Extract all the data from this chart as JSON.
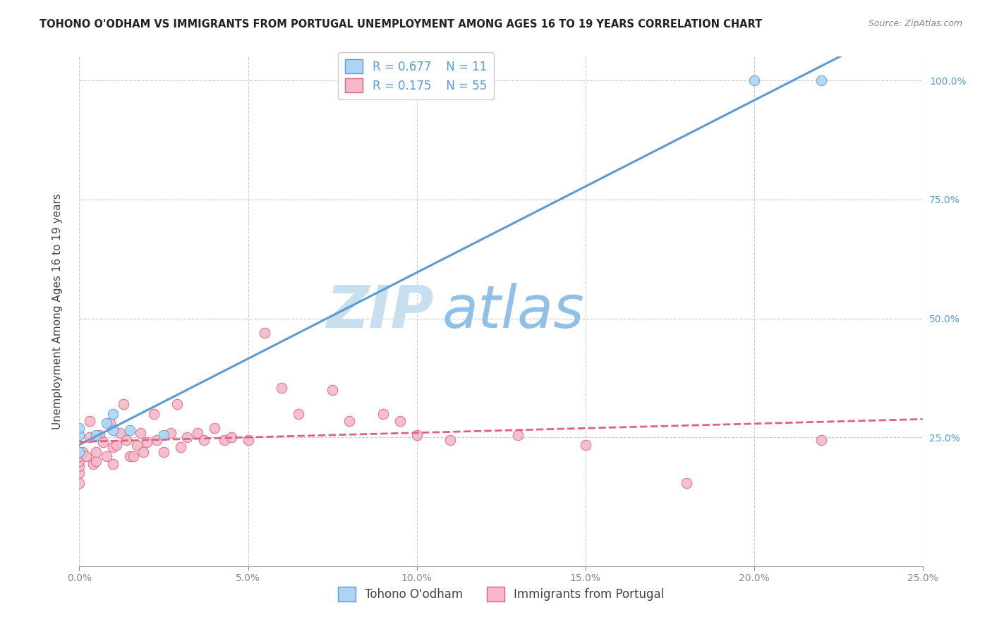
{
  "title": "TOHONO O'ODHAM VS IMMIGRANTS FROM PORTUGAL UNEMPLOYMENT AMONG AGES 16 TO 19 YEARS CORRELATION CHART",
  "source": "Source: ZipAtlas.com",
  "ylabel": "Unemployment Among Ages 16 to 19 years",
  "xlim": [
    0.0,
    0.25
  ],
  "ylim": [
    -0.02,
    1.05
  ],
  "xticks": [
    0.0,
    0.05,
    0.1,
    0.15,
    0.2,
    0.25
  ],
  "yticks": [
    0.25,
    0.5,
    0.75,
    1.0
  ],
  "xticklabels": [
    "0.0%",
    "5.0%",
    "10.0%",
    "15.0%",
    "20.0%",
    "25.0%"
  ],
  "yticklabels": [
    "25.0%",
    "50.0%",
    "75.0%",
    "100.0%"
  ],
  "blue_R": 0.677,
  "blue_N": 11,
  "pink_R": 0.175,
  "pink_N": 55,
  "blue_color": "#add4f5",
  "pink_color": "#f5b8c8",
  "blue_line_color": "#5b9bd5",
  "pink_line_color": "#e06080",
  "legend_label_blue": "Tohono O'odham",
  "legend_label_pink": "Immigrants from Portugal",
  "watermark_zip": "ZIP",
  "watermark_atlas": "atlas",
  "background_color": "#ffffff",
  "grid_color": "#cccccc",
  "blue_scatter_x": [
    0.0,
    0.0,
    0.0,
    0.005,
    0.008,
    0.01,
    0.01,
    0.015,
    0.025,
    0.2,
    0.22
  ],
  "blue_scatter_y": [
    0.22,
    0.255,
    0.27,
    0.255,
    0.28,
    0.265,
    0.3,
    0.265,
    0.255,
    1.0,
    1.0
  ],
  "pink_scatter_x": [
    0.0,
    0.0,
    0.0,
    0.0,
    0.0,
    0.0,
    0.001,
    0.002,
    0.003,
    0.003,
    0.004,
    0.005,
    0.005,
    0.006,
    0.007,
    0.008,
    0.009,
    0.01,
    0.01,
    0.011,
    0.012,
    0.013,
    0.014,
    0.015,
    0.016,
    0.017,
    0.018,
    0.019,
    0.02,
    0.022,
    0.023,
    0.025,
    0.027,
    0.029,
    0.03,
    0.032,
    0.035,
    0.037,
    0.04,
    0.043,
    0.045,
    0.05,
    0.055,
    0.06,
    0.065,
    0.075,
    0.08,
    0.09,
    0.095,
    0.1,
    0.11,
    0.13,
    0.15,
    0.18,
    0.22
  ],
  "pink_scatter_y": [
    0.155,
    0.175,
    0.19,
    0.2,
    0.21,
    0.22,
    0.22,
    0.21,
    0.25,
    0.285,
    0.195,
    0.2,
    0.22,
    0.255,
    0.24,
    0.21,
    0.28,
    0.23,
    0.195,
    0.235,
    0.26,
    0.32,
    0.245,
    0.21,
    0.21,
    0.235,
    0.26,
    0.22,
    0.24,
    0.3,
    0.245,
    0.22,
    0.26,
    0.32,
    0.23,
    0.25,
    0.26,
    0.245,
    0.27,
    0.245,
    0.25,
    0.245,
    0.47,
    0.355,
    0.3,
    0.35,
    0.285,
    0.3,
    0.285,
    0.255,
    0.245,
    0.255,
    0.235,
    0.155,
    0.245
  ],
  "title_fontsize": 10.5,
  "axis_label_fontsize": 11,
  "tick_fontsize": 10,
  "legend_fontsize": 12,
  "watermark_fontsize_zip": 60,
  "watermark_fontsize_atlas": 60,
  "watermark_color_zip": "#c8dff0",
  "watermark_color_atlas": "#90c0e8",
  "source_fontsize": 9
}
